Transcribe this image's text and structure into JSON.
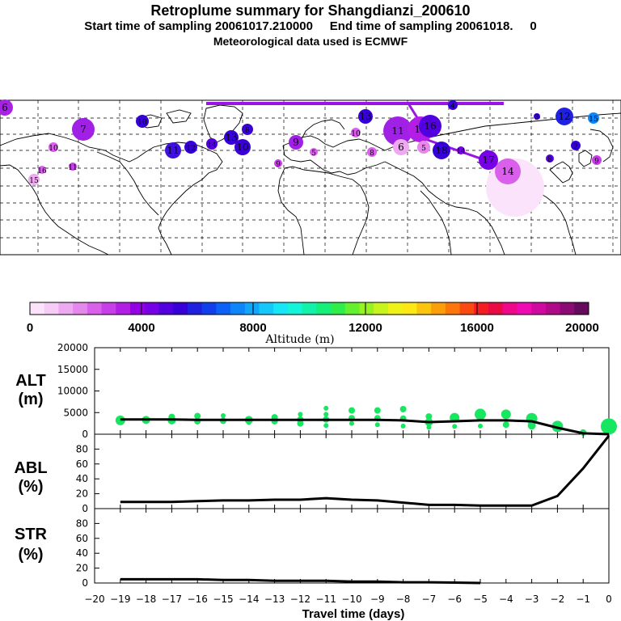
{
  "header": {
    "title": "Retroplume summary for Shangdianzi_200610",
    "sampling_line": "Start time of sampling 20061017.210000     End time of sampling 20061018.     0",
    "met_line": "Meteorological data used is ECMWF"
  },
  "map": {
    "labels": [
      "6",
      "7",
      "15",
      "16",
      "10",
      "11",
      "12",
      "14",
      "13",
      "10",
      "8",
      "9",
      "10",
      "13",
      "11",
      "19",
      "16",
      "18",
      "17",
      "14",
      "12",
      "15",
      "3",
      "2",
      "8",
      "6",
      "5",
      "4",
      "10",
      "11",
      "9",
      "14",
      "9",
      "8",
      "5"
    ]
  },
  "colorbar": {
    "colors": [
      "#fbe4fb",
      "#f6ccf6",
      "#eeaaf0",
      "#e488ec",
      "#d860ea",
      "#c83ee8",
      "#b21ee6",
      "#9600e4",
      "#7800e6",
      "#5200e0",
      "#3800d8",
      "#2020e0",
      "#1040ec",
      "#0a62f6",
      "#0c86fa",
      "#10a6fc",
      "#14c8fc",
      "#16e6f8",
      "#14f4d8",
      "#12f2a8",
      "#14f07a",
      "#30ee4a",
      "#64f02c",
      "#98f222",
      "#c8f41e",
      "#eef218",
      "#fce814",
      "#fcc40e",
      "#fc9e0a",
      "#fc760c",
      "#fa4a10",
      "#f41e22",
      "#ea0a44",
      "#f0088a",
      "#f00ab4",
      "#d00aa0",
      "#b00a88",
      "#8c0a74",
      "#660a5e"
    ],
    "tick_labels": [
      "0",
      "4000",
      "8000",
      "12000",
      "16000",
      "20000"
    ],
    "title": "Altitude (m)"
  },
  "panels": {
    "alt": {
      "label_line1": "ALT",
      "label_line2": "(m)"
    },
    "abl": {
      "label_line1": "ABL",
      "label_line2": "(%)"
    },
    "str": {
      "label_line1": "STR",
      "label_line2": "(%)"
    }
  },
  "xaxis": {
    "label": "Travel time (days)",
    "tick_labels": [
      "−20",
      "−19",
      "−18",
      "−17",
      "−16",
      "−15",
      "−14",
      "−13",
      "−12",
      "−11",
      "−10",
      "−9",
      "−8",
      "−7",
      "−6",
      "−5",
      "−4",
      "−3",
      "−2",
      "−1",
      "0"
    ]
  },
  "chart_data": [
    {
      "type": "line",
      "name": "ALT",
      "ylabel": "ALT (m)",
      "ylim": [
        0,
        20000
      ],
      "yticks": [
        0,
        5000,
        10000,
        15000,
        20000
      ],
      "ytick_labels": [
        "0",
        "5000",
        "10000",
        "15000",
        "20000"
      ],
      "x": [
        -19,
        -18,
        -17,
        -16,
        -15,
        -14,
        -13,
        -12,
        -11,
        -10,
        -9,
        -8,
        -7,
        -6,
        -5,
        -4,
        -3,
        -2,
        -1,
        0
      ],
      "values": [
        3400,
        3400,
        3400,
        3300,
        3300,
        3300,
        3300,
        3300,
        3300,
        3300,
        3300,
        3200,
        2800,
        3000,
        3200,
        3200,
        3000,
        1500,
        200,
        0
      ],
      "scatter": [
        {
          "x": -19,
          "y": 3200,
          "r": 6
        },
        {
          "x": -18,
          "y": 3300,
          "r": 5
        },
        {
          "x": -17,
          "y": 3200,
          "r": 5
        },
        {
          "x": -17,
          "y": 4000,
          "r": 4
        },
        {
          "x": -16,
          "y": 3000,
          "r": 4
        },
        {
          "x": -16,
          "y": 4200,
          "r": 4
        },
        {
          "x": -15,
          "y": 3100,
          "r": 4
        },
        {
          "x": -15,
          "y": 4300,
          "r": 3
        },
        {
          "x": -14,
          "y": 3300,
          "r": 5
        },
        {
          "x": -14,
          "y": 2700,
          "r": 3
        },
        {
          "x": -13,
          "y": 3000,
          "r": 4
        },
        {
          "x": -13,
          "y": 3900,
          "r": 4
        },
        {
          "x": -12,
          "y": 2500,
          "r": 4
        },
        {
          "x": -12,
          "y": 3400,
          "r": 4
        },
        {
          "x": -12,
          "y": 4600,
          "r": 3
        },
        {
          "x": -11,
          "y": 2000,
          "r": 3
        },
        {
          "x": -11,
          "y": 3400,
          "r": 4
        },
        {
          "x": -11,
          "y": 4600,
          "r": 3
        },
        {
          "x": -11,
          "y": 6000,
          "r": 3
        },
        {
          "x": -10,
          "y": 2500,
          "r": 3
        },
        {
          "x": -10,
          "y": 3700,
          "r": 4
        },
        {
          "x": -10,
          "y": 5500,
          "r": 4
        },
        {
          "x": -9,
          "y": 2200,
          "r": 3
        },
        {
          "x": -9,
          "y": 3700,
          "r": 4
        },
        {
          "x": -9,
          "y": 5500,
          "r": 4
        },
        {
          "x": -8,
          "y": 1900,
          "r": 3
        },
        {
          "x": -8,
          "y": 3600,
          "r": 4
        },
        {
          "x": -8,
          "y": 5800,
          "r": 4
        },
        {
          "x": -7,
          "y": 1600,
          "r": 3
        },
        {
          "x": -7,
          "y": 2800,
          "r": 5
        },
        {
          "x": -7,
          "y": 4100,
          "r": 4
        },
        {
          "x": -6,
          "y": 1800,
          "r": 3
        },
        {
          "x": -6,
          "y": 3800,
          "r": 6
        },
        {
          "x": -5,
          "y": 1900,
          "r": 3
        },
        {
          "x": -5,
          "y": 4600,
          "r": 7
        },
        {
          "x": -4,
          "y": 2200,
          "r": 4
        },
        {
          "x": -4,
          "y": 4600,
          "r": 6
        },
        {
          "x": -3,
          "y": 2000,
          "r": 5
        },
        {
          "x": -3,
          "y": 3600,
          "r": 7
        },
        {
          "x": -2,
          "y": 1800,
          "r": 7
        },
        {
          "x": -1,
          "y": 400,
          "r": 4
        },
        {
          "x": 0,
          "y": 1800,
          "r": 10
        }
      ]
    },
    {
      "type": "line",
      "name": "ABL",
      "ylabel": "ABL (%)",
      "ylim": [
        0,
        100
      ],
      "yticks": [
        0,
        20,
        40,
        60,
        80,
        100
      ],
      "ytick_labels": [
        "0",
        "20",
        "40",
        "60",
        "80"
      ],
      "x": [
        -19,
        -18,
        -17,
        -16,
        -15,
        -14,
        -13,
        -12,
        -11,
        -10,
        -9,
        -8,
        -7,
        -6,
        -5,
        -4,
        -3,
        -2,
        -1,
        0
      ],
      "values": [
        9,
        9,
        9,
        10,
        11,
        11,
        12,
        12,
        14,
        12,
        11,
        8,
        5,
        5,
        4,
        4,
        4,
        17,
        54,
        98
      ]
    },
    {
      "type": "line",
      "name": "STR",
      "ylabel": "STR (%)",
      "ylim": [
        0,
        100
      ],
      "yticks": [
        0,
        20,
        40,
        60,
        80,
        100
      ],
      "ytick_labels": [
        "0",
        "20",
        "40",
        "60",
        "80"
      ],
      "x": [
        -19,
        -18,
        -17,
        -16,
        -15,
        -14,
        -13,
        -12,
        -11,
        -10,
        -9,
        -8,
        -7,
        -6,
        -5
      ],
      "values": [
        5,
        5,
        5,
        5,
        4,
        4,
        3,
        3,
        3,
        2,
        2,
        1,
        1,
        0.5,
        0
      ]
    }
  ]
}
